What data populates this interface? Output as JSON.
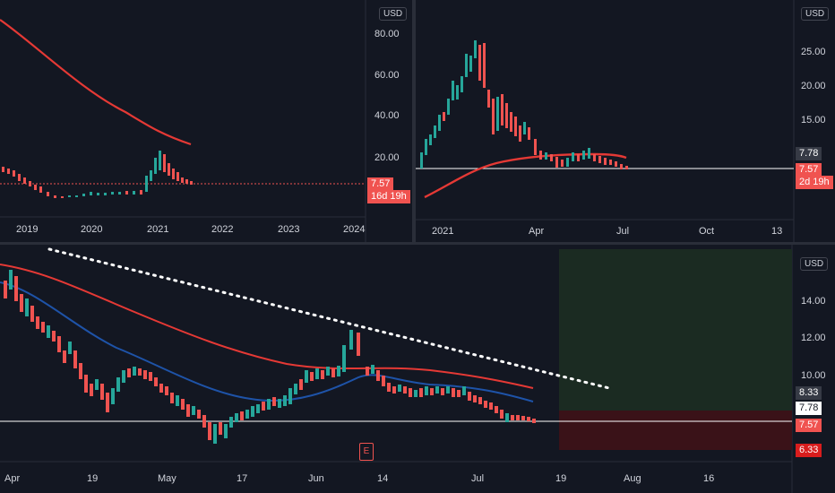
{
  "top_left": {
    "currency": "USD",
    "price_axis": [
      "80.00",
      "60.00",
      "40.00",
      "20.00"
    ],
    "time_axis": [
      "2019",
      "2020",
      "2021",
      "2022",
      "2023",
      "2024"
    ],
    "price_tag": "7.57",
    "countdown": "16d 19h"
  },
  "top_right": {
    "currency": "USD",
    "price_axis": [
      "25.00",
      "20.00",
      "15.00"
    ],
    "time_axis": [
      "2021",
      "Apr",
      "Jul",
      "Oct",
      "13"
    ],
    "ma_tag": "7.78",
    "price_tag": "7.57",
    "countdown": "2d 19h"
  },
  "bottom": {
    "currency": "USD",
    "price_axis": [
      "14.00",
      "12.00",
      "10.00"
    ],
    "time_axis": [
      "Apr",
      "19",
      "May",
      "17",
      "Jun",
      "14",
      "Jul",
      "19",
      "Aug",
      "16"
    ],
    "target_tag": "8.33",
    "ma_tag": "7.78",
    "price_tag": "7.57",
    "stop_tag": "6.33",
    "earnings_marker": "E"
  },
  "colors": {
    "background": "#131722",
    "up_candle": "#26a69a",
    "down_candle": "#ef5350",
    "ma_red": "#e53935",
    "ma_blue": "#1e53a8",
    "profit_zone": "#1b2b22",
    "loss_zone": "#3a1218"
  }
}
